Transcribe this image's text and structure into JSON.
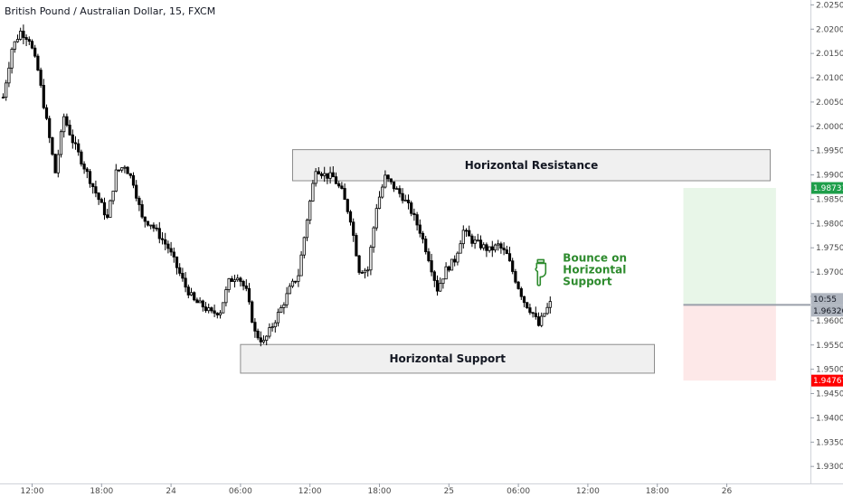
{
  "title": "British Pound / Australian Dollar, 15, FXCM",
  "chart_data": {
    "type": "candlestick",
    "ylim": [
      1.9265,
      2.026
    ],
    "y_ticks": [
      2.025,
      2.02,
      2.015,
      2.01,
      2.005,
      2.0,
      1.995,
      1.99,
      1.985,
      1.98,
      1.975,
      1.97,
      1.965,
      1.96,
      1.955,
      1.95,
      1.945,
      1.94,
      1.935,
      1.93
    ],
    "y_tick_labels": [
      "2.02500",
      "2.02000",
      "2.01500",
      "2.01000",
      "2.00500",
      "2.00000",
      "1.99500",
      "1.99000",
      "1.98500",
      "1.98000",
      "1.97500",
      "1.97000",
      "1.96500",
      "1.96000",
      "1.95500",
      "1.95000",
      "1.94500",
      "1.94000",
      "1.93500",
      "1.93000"
    ],
    "x_ticks": [
      {
        "label": "12:00",
        "bar": 10
      },
      {
        "label": "18:00",
        "bar": 34
      },
      {
        "label": "24",
        "bar": 58
      },
      {
        "label": "06:00",
        "bar": 82
      },
      {
        "label": "12:00",
        "bar": 106
      },
      {
        "label": "18:00",
        "bar": 130
      },
      {
        "label": "25",
        "bar": 154
      },
      {
        "label": "06:00",
        "bar": 178
      },
      {
        "label": "12:00",
        "bar": 202
      },
      {
        "label": "18:00",
        "bar": 226
      },
      {
        "label": "26",
        "bar": 250
      }
    ],
    "series": {
      "close_path": [
        [
          0,
          2.006
        ],
        [
          3,
          2.016
        ],
        [
          6,
          2.0195
        ],
        [
          9,
          2.018
        ],
        [
          12,
          2.0115
        ],
        [
          15,
          2.001
        ],
        [
          18,
          1.9905
        ],
        [
          21,
          2.002
        ],
        [
          24,
          1.997
        ],
        [
          27,
          1.993
        ],
        [
          30,
          1.989
        ],
        [
          33,
          1.985
        ],
        [
          36,
          1.981
        ],
        [
          39,
          1.9905
        ],
        [
          42,
          1.992
        ],
        [
          45,
          1.9885
        ],
        [
          48,
          1.981
        ],
        [
          51,
          1.98
        ],
        [
          54,
          1.9775
        ],
        [
          57,
          1.975
        ],
        [
          60,
          1.971
        ],
        [
          63,
          1.967
        ],
        [
          66,
          1.964
        ],
        [
          69,
          1.963
        ],
        [
          72,
          1.9615
        ],
        [
          75,
          1.962
        ],
        [
          78,
          1.968
        ],
        [
          81,
          1.9695
        ],
        [
          84,
          1.966
        ],
        [
          87,
          1.9575
        ],
        [
          90,
          1.9555
        ],
        [
          93,
          1.959
        ],
        [
          96,
          1.9625
        ],
        [
          99,
          1.9665
        ],
        [
          102,
          1.9695
        ],
        [
          105,
          1.981
        ],
        [
          108,
          1.9915
        ],
        [
          111,
          1.99
        ],
        [
          114,
          1.9895
        ],
        [
          117,
          1.9865
        ],
        [
          120,
          1.981
        ],
        [
          123,
          1.9705
        ],
        [
          126,
          1.9705
        ],
        [
          129,
          1.9835
        ],
        [
          132,
          1.9895
        ],
        [
          135,
          1.9875
        ],
        [
          138,
          1.9855
        ],
        [
          141,
          1.9825
        ],
        [
          144,
          1.9785
        ],
        [
          147,
          1.973
        ],
        [
          150,
          1.9665
        ],
        [
          153,
          1.9705
        ],
        [
          156,
          1.9725
        ],
        [
          159,
          1.9785
        ],
        [
          162,
          1.9765
        ],
        [
          165,
          1.9755
        ],
        [
          168,
          1.9745
        ],
        [
          171,
          1.9755
        ],
        [
          174,
          1.9735
        ],
        [
          177,
          1.9685
        ],
        [
          180,
          1.964
        ],
        [
          183,
          1.9615
        ],
        [
          185,
          1.959
        ],
        [
          187,
          1.9615
        ],
        [
          189,
          1.9635
        ]
      ],
      "amplitude": 0.0016,
      "seed": 7
    },
    "bar_count_visible": 280,
    "last_bar_index": 189,
    "resistance_zone": {
      "label": "Horizontal Resistance",
      "bar_start": 100,
      "bar_end": 265,
      "y_top": 1.9952,
      "y_bottom": 1.9888
    },
    "support_zone": {
      "label": "Horizontal Support",
      "bar_start": 82,
      "bar_end": 225,
      "y_top": 1.9551,
      "y_bottom": 1.9492
    },
    "position": {
      "bar_start": 235,
      "bar_end": 267,
      "target": 1.98731,
      "entry": 1.96326,
      "stop": 1.94767
    },
    "annotation": {
      "lines": [
        "Bounce on",
        "Horizontal",
        "Support"
      ],
      "bar": 189,
      "y": 1.9718,
      "color": "#2e8b2e"
    },
    "colors": {
      "up": "#ffffff",
      "down": "#000000",
      "wick": "#000000",
      "profit_fill": "#e8f6e8",
      "loss_fill": "#fde8e8",
      "target_tag": "#1e9e4a",
      "stop_tag": "#ff0000",
      "entry_tag": "#b0b6c0"
    }
  },
  "price_tags": {
    "target": "1.98731",
    "time": "10:55",
    "entry": "1.96326",
    "stop": "1.94767"
  }
}
